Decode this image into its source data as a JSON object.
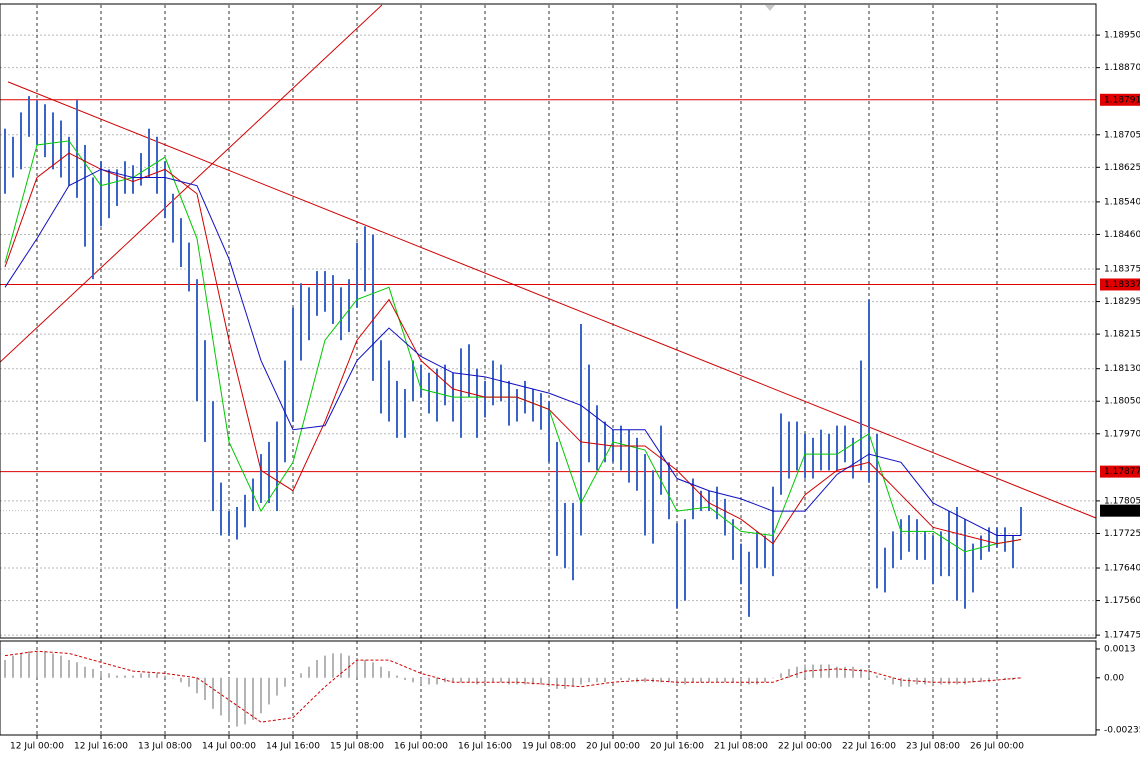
{
  "chart_data": {
    "type": "ohlc-bar",
    "xlim": [
      -0.625,
      136.375
    ],
    "xticks": [
      {
        "value": 4,
        "label": "12 Jul 00:00"
      },
      {
        "value": 12,
        "label": "12 Jul 16:00"
      },
      {
        "value": 20,
        "label": "13 Jul 08:00"
      },
      {
        "value": 28,
        "label": "14 Jul 00:00"
      },
      {
        "value": 36,
        "label": "14 Jul 16:00"
      },
      {
        "value": 44,
        "label": "15 Jul 08:00"
      },
      {
        "value": 52,
        "label": "16 Jul 00:00"
      },
      {
        "value": 60,
        "label": "16 Jul 16:00"
      },
      {
        "value": 68,
        "label": "19 Jul 08:00"
      },
      {
        "value": 76,
        "label": "20 Jul 00:00"
      },
      {
        "value": 84,
        "label": "20 Jul 16:00"
      },
      {
        "value": 92,
        "label": "21 Jul 08:00"
      },
      {
        "value": 100,
        "label": "22 Jul 00:00"
      },
      {
        "value": 108,
        "label": "22 Jul 16:00"
      },
      {
        "value": 116,
        "label": "23 Jul 08:00"
      },
      {
        "value": 124,
        "label": "26 Jul 00:00"
      }
    ],
    "ylim": [
      1.17468,
      1.19024
    ],
    "yticks": [
      {
        "value": 1.1895,
        "label": "1.18950"
      },
      {
        "value": 1.1887,
        "label": "1.18870"
      },
      {
        "value": 1.18705,
        "label": "1.18705"
      },
      {
        "value": 1.18625,
        "label": "1.18625"
      },
      {
        "value": 1.1854,
        "label": "1.18540"
      },
      {
        "value": 1.1846,
        "label": "1.18460"
      },
      {
        "value": 1.18375,
        "label": "1.18375"
      },
      {
        "value": 1.18295,
        "label": "1.18295"
      },
      {
        "value": 1.18215,
        "label": "1.18215"
      },
      {
        "value": 1.1813,
        "label": "1.18130"
      },
      {
        "value": 1.1805,
        "label": "1.18050"
      },
      {
        "value": 1.1797,
        "label": "1.17970"
      },
      {
        "value": 1.17805,
        "label": "1.17805"
      },
      {
        "value": 1.17725,
        "label": "1.17725"
      },
      {
        "value": 1.1764,
        "label": "1.17640"
      },
      {
        "value": 1.1756,
        "label": "1.17560"
      },
      {
        "value": 1.17475,
        "label": "1.17475"
      }
    ],
    "grid": true,
    "bar_color": "#3a64c8",
    "high": [
      1.1872,
      1.187,
      1.1876,
      1.188,
      1.1879,
      1.1878,
      1.1876,
      1.1874,
      1.187,
      1.1879,
      1.1868,
      1.186,
      1.1864,
      1.1862,
      1.1862,
      1.1864,
      1.1863,
      1.1866,
      1.1872,
      1.187,
      1.1864,
      1.1856,
      1.185,
      1.1844,
      1.1835,
      1.182,
      1.1805,
      1.1785,
      1.1778,
      1.1779,
      1.1782,
      1.1786,
      1.1792,
      1.1795,
      1.18,
      1.1815,
      1.1828,
      1.1834,
      1.1833,
      1.1837,
      1.1837,
      1.1836,
      1.1833,
      1.1835,
      1.1844,
      1.1848,
      1.1846,
      1.182,
      1.1815,
      1.181,
      1.1808,
      1.1815,
      1.1814,
      1.1812,
      1.1813,
      1.1814,
      1.1812,
      1.1818,
      1.1819,
      1.1813,
      1.181,
      1.1815,
      1.1814,
      1.181,
      1.1808,
      1.181,
      1.1808,
      1.1807,
      1.1805,
      1.1795,
      1.178,
      1.178,
      1.1824,
      1.1814,
      1.1804,
      1.18,
      1.1798,
      1.1799,
      1.1798,
      1.1796,
      1.1792,
      1.1788,
      1.1799,
      1.179,
      1.1775,
      1.1776,
      1.1786,
      1.1783,
      1.1783,
      1.1784,
      1.1781,
      1.1776,
      1.177,
      1.1768,
      1.1773,
      1.1772,
      1.1784,
      1.1802,
      1.18,
      1.18,
      1.1797,
      1.1796,
      1.1798,
      1.1797,
      1.1799,
      1.1799,
      1.1796,
      1.1815,
      1.183,
      1.1797,
      1.1769,
      1.1773,
      1.1776,
      1.1777,
      1.1776,
      1.1773,
      1.1772,
      1.1773,
      1.1778,
      1.1779,
      1.1776,
      1.177,
      1.1772,
      1.1774,
      1.1774,
      1.1774,
      1.1772,
      1.1779
    ],
    "low": [
      1.1856,
      1.186,
      1.1862,
      1.187,
      1.1868,
      1.1865,
      1.1862,
      1.186,
      1.1858,
      1.1855,
      1.1843,
      1.1835,
      1.1848,
      1.185,
      1.1853,
      1.1856,
      1.1856,
      1.1858,
      1.186,
      1.1856,
      1.185,
      1.1844,
      1.1838,
      1.1832,
      1.1805,
      1.1795,
      1.1778,
      1.1772,
      1.1772,
      1.1771,
      1.1774,
      1.1778,
      1.178,
      1.178,
      1.1778,
      1.179,
      1.18,
      1.1815,
      1.182,
      1.1826,
      1.1827,
      1.1824,
      1.182,
      1.1822,
      1.1828,
      1.1832,
      1.181,
      1.1802,
      1.18,
      1.1796,
      1.1796,
      1.1805,
      1.1806,
      1.1802,
      1.18,
      1.1804,
      1.18,
      1.1796,
      1.1806,
      1.1796,
      1.1801,
      1.1804,
      1.1805,
      1.1799,
      1.18,
      1.1802,
      1.18,
      1.1798,
      1.179,
      1.1767,
      1.1764,
      1.1761,
      1.1772,
      1.179,
      1.1788,
      1.179,
      1.179,
      1.1788,
      1.1785,
      1.1783,
      1.1772,
      1.177,
      1.1782,
      1.1776,
      1.1754,
      1.1756,
      1.1776,
      1.1778,
      1.1778,
      1.1776,
      1.1772,
      1.1766,
      1.176,
      1.1752,
      1.1764,
      1.1764,
      1.1762,
      1.1782,
      1.1786,
      1.1788,
      1.1786,
      1.1786,
      1.1788,
      1.1788,
      1.1788,
      1.179,
      1.1786,
      1.1788,
      1.1785,
      1.1759,
      1.1758,
      1.1764,
      1.1766,
      1.1768,
      1.1766,
      1.1766,
      1.176,
      1.1762,
      1.1762,
      1.1756,
      1.1754,
      1.1758,
      1.1766,
      1.1768,
      1.1769,
      1.1768,
      1.1764,
      1.1772
    ],
    "moving_averages": {
      "x": [
        0,
        4,
        8,
        12,
        16,
        20,
        24,
        28,
        32,
        36,
        40,
        44,
        48,
        52,
        56,
        60,
        64,
        68,
        72,
        76,
        80,
        84,
        88,
        92,
        96,
        100,
        104,
        108,
        112,
        116,
        120,
        124,
        127
      ],
      "series": [
        {
          "color": "#00c800",
          "values": [
            1.1839,
            1.1868,
            1.1869,
            1.1858,
            1.186,
            1.1865,
            1.1845,
            1.1795,
            1.1778,
            1.179,
            1.182,
            1.183,
            1.1833,
            1.1808,
            1.1806,
            1.1806,
            1.1806,
            1.1803,
            1.178,
            1.1795,
            1.1793,
            1.1778,
            1.1779,
            1.1773,
            1.1772,
            1.1792,
            1.1792,
            1.1797,
            1.1773,
            1.1773,
            1.1768,
            1.177,
            1.1771
          ]
        },
        {
          "color": "#d00000",
          "values": [
            1.1838,
            1.186,
            1.1866,
            1.1862,
            1.1859,
            1.1862,
            1.1856,
            1.182,
            1.1788,
            1.1783,
            1.18,
            1.182,
            1.183,
            1.1815,
            1.1808,
            1.1806,
            1.1806,
            1.1803,
            1.1795,
            1.1794,
            1.1794,
            1.1788,
            1.178,
            1.1776,
            1.177,
            1.1782,
            1.1788,
            1.179,
            1.1782,
            1.1774,
            1.1772,
            1.177,
            1.1771
          ]
        },
        {
          "color": "#1010c0",
          "values": [
            1.1833,
            1.1845,
            1.1858,
            1.1862,
            1.186,
            1.186,
            1.1858,
            1.184,
            1.1815,
            1.1798,
            1.1799,
            1.1815,
            1.1823,
            1.1816,
            1.1812,
            1.1811,
            1.1809,
            1.1807,
            1.1804,
            1.1798,
            1.1798,
            1.1786,
            1.1783,
            1.1781,
            1.1778,
            1.1778,
            1.1787,
            1.1792,
            1.179,
            1.178,
            1.1776,
            1.1772,
            1.1772
          ]
        }
      ]
    },
    "levels": [
      {
        "value": 1.18791,
        "color": "#e00000"
      },
      {
        "value": 1.18337,
        "color": "#e00000"
      },
      {
        "value": 1.17877,
        "color": "#e00000"
      }
    ],
    "current_price": 1.17781,
    "trendlines": [
      {
        "x": [
          0.375,
          136.375
        ],
        "y": [
          1.18835,
          1.17763
        ],
        "color": "#d00000"
      },
      {
        "x": [
          -0.625,
          47.125
        ],
        "y": [
          1.18146,
          1.19024
        ],
        "color": "#d00000"
      }
    ],
    "indicator": {
      "type": "histogram",
      "color": "#b4b4b4",
      "ylim": [
        -0.00258,
        0.00166
      ],
      "yticks": [
        0.0013,
        {
          "value": 0,
          "label": "0.00"
        },
        -0.00235
      ],
      "values": [
        0.0008,
        0.001,
        0.0011,
        0.0012,
        0.0012,
        0.0012,
        0.0011,
        0.001,
        0.0008,
        0.0007,
        0.0005,
        0.0004,
        0.0003,
        0.0002,
        0.0001,
        0.0001,
        0.0001,
        0.0002,
        0.0002,
        0.0002,
        0.0001,
        0,
        -0.0002,
        -0.0004,
        -0.0007,
        -0.001,
        -0.0014,
        -0.0017,
        -0.002,
        -0.0022,
        -0.0021,
        -0.0019,
        -0.0016,
        -0.0012,
        -0.0008,
        -0.0004,
        -0.0001,
        0.0002,
        0.0005,
        0.0008,
        0.001,
        0.0011,
        0.0011,
        0.001,
        0.0009,
        0.0008,
        0.0007,
        0.0005,
        0.0003,
        0.0001,
        -0.0001,
        -0.0002,
        -0.0003,
        -0.0003,
        -0.0003,
        -0.0002,
        -0.0002,
        -0.0002,
        -0.0002,
        -0.0003,
        -0.0002,
        -0.0002,
        -0.0002,
        -0.0003,
        -0.0003,
        -0.0003,
        -0.0003,
        -0.0003,
        -0.0004,
        -0.0005,
        -0.0005,
        -0.0004,
        -0.0003,
        -0.0002,
        -0.0002,
        -0.0002,
        -0.0001,
        -0.0001,
        -0.0001,
        -0.0002,
        -0.0002,
        -0.0002,
        -0.0002,
        -0.0002,
        -0.0003,
        -0.0003,
        -0.0002,
        -0.0002,
        -0.0002,
        -0.0002,
        -0.0002,
        -0.0002,
        -0.0003,
        -0.0003,
        -0.0003,
        -0.0002,
        0,
        0.0002,
        0.0004,
        0.0005,
        0.0006,
        0.0006,
        0.0006,
        0.0006,
        0.0005,
        0.0005,
        0.0005,
        0.0004,
        0.0004,
        0.0001,
        -0.0001,
        -0.0003,
        -0.0004,
        -0.0004,
        -0.0003,
        -0.0003,
        -0.0003,
        -0.0003,
        -0.0003,
        -0.0003,
        -0.0003,
        -0.0002,
        -0.0002,
        -0.0002,
        -0.0001,
        -0.0001,
        -0.0001,
        0
      ],
      "signal": {
        "color": "#d00000",
        "x": [
          0,
          4,
          8,
          12,
          16,
          20,
          24,
          28,
          32,
          36,
          40,
          44,
          48,
          52,
          56,
          60,
          64,
          68,
          72,
          76,
          80,
          84,
          88,
          92,
          96,
          100,
          104,
          108,
          112,
          116,
          120,
          124,
          127
        ],
        "values": [
          0.001,
          0.0012,
          0.0011,
          0.0007,
          0.0003,
          0.0002,
          0,
          -0.001,
          -0.002,
          -0.0018,
          -0.0004,
          0.0008,
          0.0008,
          0.0002,
          -0.0002,
          -0.0002,
          -0.0002,
          -0.0003,
          -0.0004,
          -0.0002,
          -0.0001,
          -0.0002,
          -0.0002,
          -0.0002,
          -0.0002,
          0.0003,
          0.0004,
          0.0003,
          -0.0001,
          -0.0002,
          -0.0002,
          -0.0001,
          0
        ]
      }
    }
  }
}
